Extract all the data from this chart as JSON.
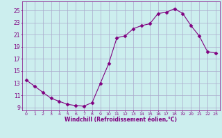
{
  "x": [
    0,
    1,
    2,
    3,
    4,
    5,
    6,
    7,
    8,
    9,
    10,
    11,
    12,
    13,
    14,
    15,
    16,
    17,
    18,
    19,
    20,
    21,
    22,
    23
  ],
  "y": [
    13.5,
    12.5,
    11.5,
    10.5,
    10.0,
    9.5,
    9.3,
    9.2,
    9.8,
    13.0,
    16.2,
    20.5,
    20.8,
    22.0,
    22.5,
    22.8,
    24.5,
    24.7,
    25.3,
    24.5,
    22.5,
    20.8,
    18.2,
    18.0
  ],
  "line_color": "#800080",
  "marker": "D",
  "marker_size": 2.5,
  "bg_color": "#cceeee",
  "grid_color": "#aaaacc",
  "xlabel": "Windchill (Refroidissement éolien,°C)",
  "xlabel_color": "#800080",
  "tick_color": "#800080",
  "xlim": [
    -0.5,
    23.5
  ],
  "ylim": [
    8.5,
    26.5
  ],
  "yticks": [
    9,
    11,
    13,
    15,
    17,
    19,
    21,
    23,
    25
  ],
  "xticks": [
    0,
    1,
    2,
    3,
    4,
    5,
    6,
    7,
    8,
    9,
    10,
    11,
    12,
    13,
    14,
    15,
    16,
    17,
    18,
    19,
    20,
    21,
    22,
    23
  ]
}
